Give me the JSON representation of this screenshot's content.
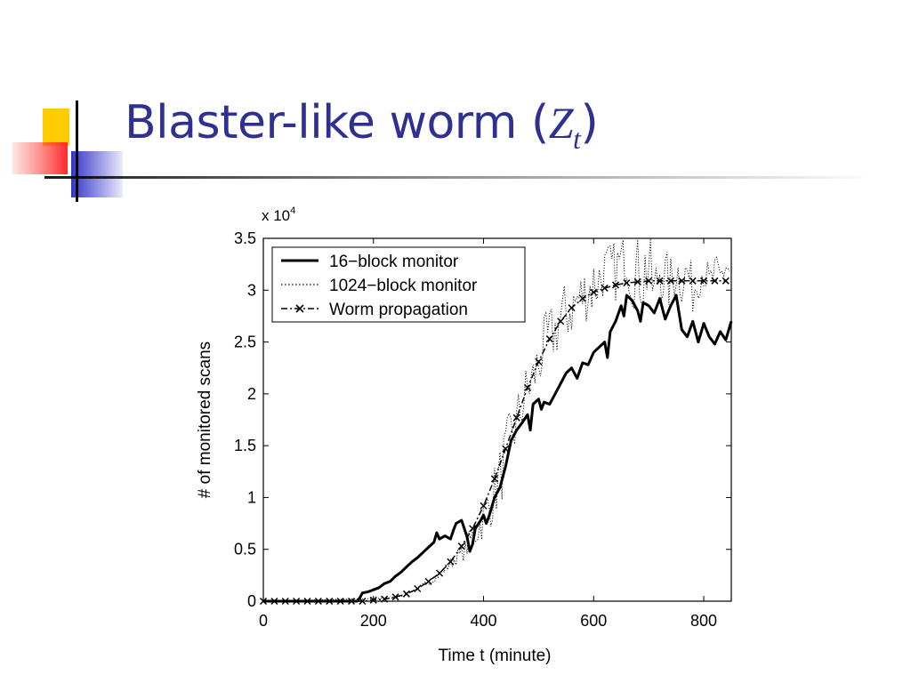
{
  "slide": {
    "title_text": "Blaster-like worm (",
    "title_math": "Z",
    "title_sub": "t",
    "title_close": ")",
    "accent_color": "#2e3192"
  },
  "chart_data": {
    "type": "line",
    "xlabel": "Time t (minute)",
    "ylabel": "# of monitored scans",
    "y_scale_label": "x 10",
    "y_scale_exp": "4",
    "xlim": [
      0,
      850
    ],
    "ylim": [
      0,
      3.5
    ],
    "xticks": [
      0,
      200,
      400,
      600,
      800
    ],
    "yticks": [
      0,
      0.5,
      1,
      1.5,
      2,
      2.5,
      3,
      3.5
    ],
    "ytick_labels": [
      "0",
      "0.5",
      "1",
      "1.5",
      "2",
      "2.5",
      "3",
      "3.5"
    ],
    "grid": false,
    "legend_position": "top-left",
    "series": [
      {
        "name": "16−block monitor",
        "style": "solid",
        "x": [
          0,
          170,
          175,
          180,
          190,
          200,
          210,
          220,
          230,
          240,
          250,
          260,
          270,
          280,
          290,
          300,
          310,
          315,
          320,
          330,
          340,
          345,
          350,
          360,
          365,
          370,
          375,
          380,
          385,
          390,
          395,
          400,
          405,
          410,
          420,
          430,
          440,
          450,
          460,
          470,
          480,
          485,
          490,
          500,
          505,
          510,
          520,
          530,
          540,
          550,
          560,
          570,
          580,
          590,
          600,
          610,
          620,
          625,
          630,
          640,
          650,
          655,
          660,
          670,
          680,
          685,
          690,
          700,
          710,
          720,
          730,
          740,
          750,
          760,
          770,
          780,
          790,
          800,
          810,
          820,
          830,
          840,
          850
        ],
        "y": [
          0,
          0,
          0.03,
          0.08,
          0.09,
          0.11,
          0.13,
          0.17,
          0.19,
          0.24,
          0.28,
          0.33,
          0.38,
          0.42,
          0.47,
          0.52,
          0.57,
          0.66,
          0.6,
          0.63,
          0.6,
          0.68,
          0.75,
          0.78,
          0.7,
          0.62,
          0.48,
          0.55,
          0.7,
          0.74,
          0.78,
          0.83,
          0.75,
          0.82,
          1.0,
          1.1,
          1.3,
          1.55,
          1.65,
          1.72,
          1.8,
          1.65,
          1.9,
          1.95,
          1.85,
          1.92,
          1.9,
          2.0,
          2.1,
          2.2,
          2.25,
          2.15,
          2.3,
          2.28,
          2.4,
          2.45,
          2.5,
          2.35,
          2.6,
          2.7,
          2.85,
          2.75,
          2.95,
          2.9,
          2.8,
          2.7,
          2.88,
          2.85,
          2.78,
          2.92,
          2.72,
          2.85,
          2.95,
          2.62,
          2.55,
          2.7,
          2.5,
          2.68,
          2.55,
          2.48,
          2.6,
          2.52,
          2.7
        ]
      },
      {
        "name": "1024−block monitor",
        "style": "dotted",
        "x": [
          0,
          240,
          260,
          280,
          300,
          320,
          340,
          350,
          360,
          370,
          380,
          390,
          400,
          410,
          420,
          430,
          440,
          450,
          460,
          470,
          480,
          490,
          500,
          510,
          520,
          530,
          540,
          550,
          560,
          570,
          580,
          590,
          600,
          610,
          620,
          630,
          640,
          650,
          660,
          670,
          680,
          690,
          700,
          710,
          720,
          730,
          740,
          750,
          760,
          770,
          780,
          790,
          800,
          810,
          820,
          830,
          840,
          850
        ],
        "y": [
          0,
          0.03,
          0.07,
          0.12,
          0.18,
          0.26,
          0.36,
          0.42,
          0.45,
          0.52,
          0.62,
          0.7,
          0.82,
          0.92,
          1.05,
          1.2,
          1.4,
          1.6,
          1.7,
          1.9,
          2.05,
          2.15,
          2.3,
          2.45,
          2.55,
          2.6,
          2.72,
          2.78,
          2.82,
          2.9,
          2.95,
          3.0,
          3.05,
          3.1,
          3.2,
          3.22,
          3.18,
          3.28,
          3.3,
          3.1,
          3.22,
          3.15,
          3.25,
          2.95,
          3.2,
          3.1,
          3.05,
          3.2,
          3.1,
          3.18,
          3.0,
          3.12,
          3.2,
          3.05,
          3.15,
          3.1,
          3.25,
          3.15
        ],
        "noise": [
          0,
          0,
          0.01,
          0.02,
          0.03,
          0.04,
          0.06,
          0.07,
          0.08,
          0.1,
          0.15,
          0.18,
          0.22,
          0.25,
          0.28,
          0.3,
          0.32,
          0.3,
          0.3,
          0.3,
          0.28,
          0.28,
          0.3,
          0.3,
          0.3,
          0.3,
          0.3,
          0.32,
          0.3,
          0.3,
          0.3,
          0.3,
          0.35,
          0.3,
          0.25,
          0.25,
          0.3,
          0.25,
          0.25,
          0.3,
          0.35,
          0.45,
          0.4,
          0.35,
          0.3,
          0.3,
          0.3,
          0.25,
          0.25,
          0.2,
          0.25,
          0.2,
          0.2,
          0.2,
          0.2,
          0.2,
          0.2,
          0.2
        ]
      },
      {
        "name": "Worm propagation",
        "style": "dash-dot with x markers",
        "x": [
          0,
          20,
          40,
          60,
          80,
          100,
          120,
          140,
          160,
          180,
          200,
          220,
          240,
          260,
          280,
          300,
          320,
          340,
          360,
          380,
          400,
          420,
          440,
          460,
          480,
          500,
          520,
          540,
          560,
          580,
          600,
          620,
          640,
          660,
          680,
          700,
          720,
          740,
          760,
          780,
          800,
          820,
          840
        ],
        "y": [
          0,
          0,
          0,
          0,
          0,
          0,
          0,
          0,
          0,
          0,
          0.01,
          0.02,
          0.04,
          0.07,
          0.12,
          0.19,
          0.27,
          0.38,
          0.53,
          0.7,
          0.92,
          1.18,
          1.47,
          1.77,
          2.06,
          2.31,
          2.53,
          2.7,
          2.83,
          2.92,
          2.98,
          3.02,
          3.05,
          3.07,
          3.08,
          3.09,
          3.09,
          3.09,
          3.09,
          3.09,
          3.09,
          3.09,
          3.09
        ]
      }
    ]
  }
}
